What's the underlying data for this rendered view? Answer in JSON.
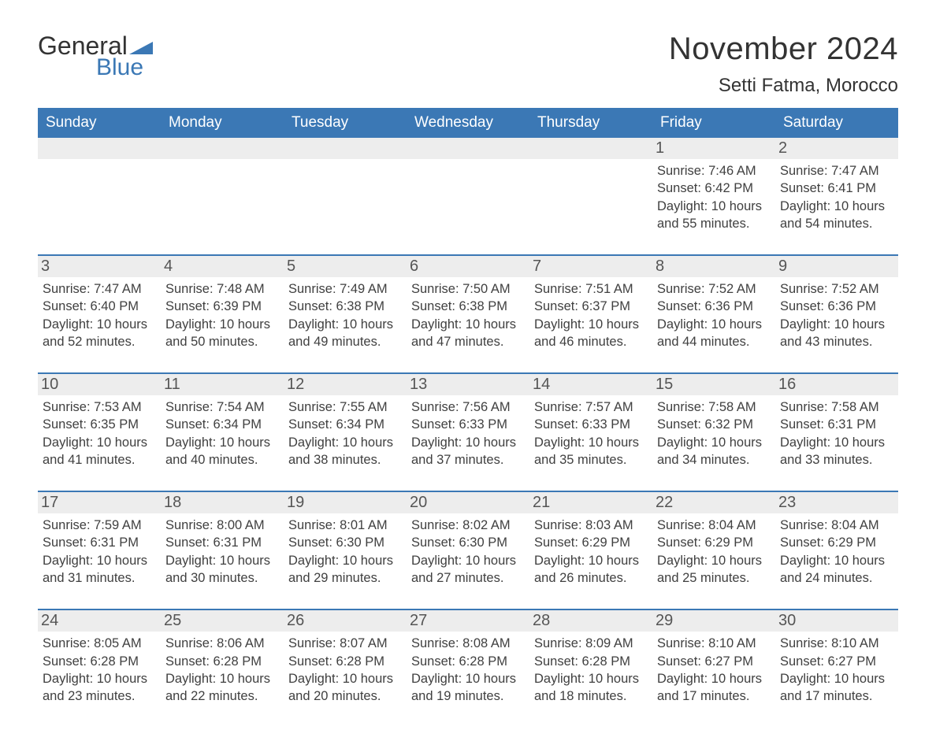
{
  "logo": {
    "word1": "General",
    "word2": "Blue",
    "accent_color": "#3b78b5"
  },
  "title": "November 2024",
  "location": "Setti Fatma, Morocco",
  "colors": {
    "header_bg": "#3b78b5",
    "header_text": "#ffffff",
    "daynum_bg": "#ededed",
    "week_border": "#3b78b5",
    "body_text": "#404040",
    "page_bg": "#ffffff"
  },
  "typography": {
    "title_fontsize": 40,
    "location_fontsize": 24,
    "dayheader_fontsize": 19,
    "daynum_fontsize": 20,
    "body_fontsize": 16.5
  },
  "day_names": [
    "Sunday",
    "Monday",
    "Tuesday",
    "Wednesday",
    "Thursday",
    "Friday",
    "Saturday"
  ],
  "weeks": [
    [
      null,
      null,
      null,
      null,
      null,
      {
        "day": 1,
        "sunrise": "7:46 AM",
        "sunset": "6:42 PM",
        "daylight": "10 hours and 55 minutes."
      },
      {
        "day": 2,
        "sunrise": "7:47 AM",
        "sunset": "6:41 PM",
        "daylight": "10 hours and 54 minutes."
      }
    ],
    [
      {
        "day": 3,
        "sunrise": "7:47 AM",
        "sunset": "6:40 PM",
        "daylight": "10 hours and 52 minutes."
      },
      {
        "day": 4,
        "sunrise": "7:48 AM",
        "sunset": "6:39 PM",
        "daylight": "10 hours and 50 minutes."
      },
      {
        "day": 5,
        "sunrise": "7:49 AM",
        "sunset": "6:38 PM",
        "daylight": "10 hours and 49 minutes."
      },
      {
        "day": 6,
        "sunrise": "7:50 AM",
        "sunset": "6:38 PM",
        "daylight": "10 hours and 47 minutes."
      },
      {
        "day": 7,
        "sunrise": "7:51 AM",
        "sunset": "6:37 PM",
        "daylight": "10 hours and 46 minutes."
      },
      {
        "day": 8,
        "sunrise": "7:52 AM",
        "sunset": "6:36 PM",
        "daylight": "10 hours and 44 minutes."
      },
      {
        "day": 9,
        "sunrise": "7:52 AM",
        "sunset": "6:36 PM",
        "daylight": "10 hours and 43 minutes."
      }
    ],
    [
      {
        "day": 10,
        "sunrise": "7:53 AM",
        "sunset": "6:35 PM",
        "daylight": "10 hours and 41 minutes."
      },
      {
        "day": 11,
        "sunrise": "7:54 AM",
        "sunset": "6:34 PM",
        "daylight": "10 hours and 40 minutes."
      },
      {
        "day": 12,
        "sunrise": "7:55 AM",
        "sunset": "6:34 PM",
        "daylight": "10 hours and 38 minutes."
      },
      {
        "day": 13,
        "sunrise": "7:56 AM",
        "sunset": "6:33 PM",
        "daylight": "10 hours and 37 minutes."
      },
      {
        "day": 14,
        "sunrise": "7:57 AM",
        "sunset": "6:33 PM",
        "daylight": "10 hours and 35 minutes."
      },
      {
        "day": 15,
        "sunrise": "7:58 AM",
        "sunset": "6:32 PM",
        "daylight": "10 hours and 34 minutes."
      },
      {
        "day": 16,
        "sunrise": "7:58 AM",
        "sunset": "6:31 PM",
        "daylight": "10 hours and 33 minutes."
      }
    ],
    [
      {
        "day": 17,
        "sunrise": "7:59 AM",
        "sunset": "6:31 PM",
        "daylight": "10 hours and 31 minutes."
      },
      {
        "day": 18,
        "sunrise": "8:00 AM",
        "sunset": "6:31 PM",
        "daylight": "10 hours and 30 minutes."
      },
      {
        "day": 19,
        "sunrise": "8:01 AM",
        "sunset": "6:30 PM",
        "daylight": "10 hours and 29 minutes."
      },
      {
        "day": 20,
        "sunrise": "8:02 AM",
        "sunset": "6:30 PM",
        "daylight": "10 hours and 27 minutes."
      },
      {
        "day": 21,
        "sunrise": "8:03 AM",
        "sunset": "6:29 PM",
        "daylight": "10 hours and 26 minutes."
      },
      {
        "day": 22,
        "sunrise": "8:04 AM",
        "sunset": "6:29 PM",
        "daylight": "10 hours and 25 minutes."
      },
      {
        "day": 23,
        "sunrise": "8:04 AM",
        "sunset": "6:29 PM",
        "daylight": "10 hours and 24 minutes."
      }
    ],
    [
      {
        "day": 24,
        "sunrise": "8:05 AM",
        "sunset": "6:28 PM",
        "daylight": "10 hours and 23 minutes."
      },
      {
        "day": 25,
        "sunrise": "8:06 AM",
        "sunset": "6:28 PM",
        "daylight": "10 hours and 22 minutes."
      },
      {
        "day": 26,
        "sunrise": "8:07 AM",
        "sunset": "6:28 PM",
        "daylight": "10 hours and 20 minutes."
      },
      {
        "day": 27,
        "sunrise": "8:08 AM",
        "sunset": "6:28 PM",
        "daylight": "10 hours and 19 minutes."
      },
      {
        "day": 28,
        "sunrise": "8:09 AM",
        "sunset": "6:28 PM",
        "daylight": "10 hours and 18 minutes."
      },
      {
        "day": 29,
        "sunrise": "8:10 AM",
        "sunset": "6:27 PM",
        "daylight": "10 hours and 17 minutes."
      },
      {
        "day": 30,
        "sunrise": "8:10 AM",
        "sunset": "6:27 PM",
        "daylight": "10 hours and 17 minutes."
      }
    ]
  ],
  "labels": {
    "sunrise": "Sunrise:",
    "sunset": "Sunset:",
    "daylight": "Daylight:"
  }
}
